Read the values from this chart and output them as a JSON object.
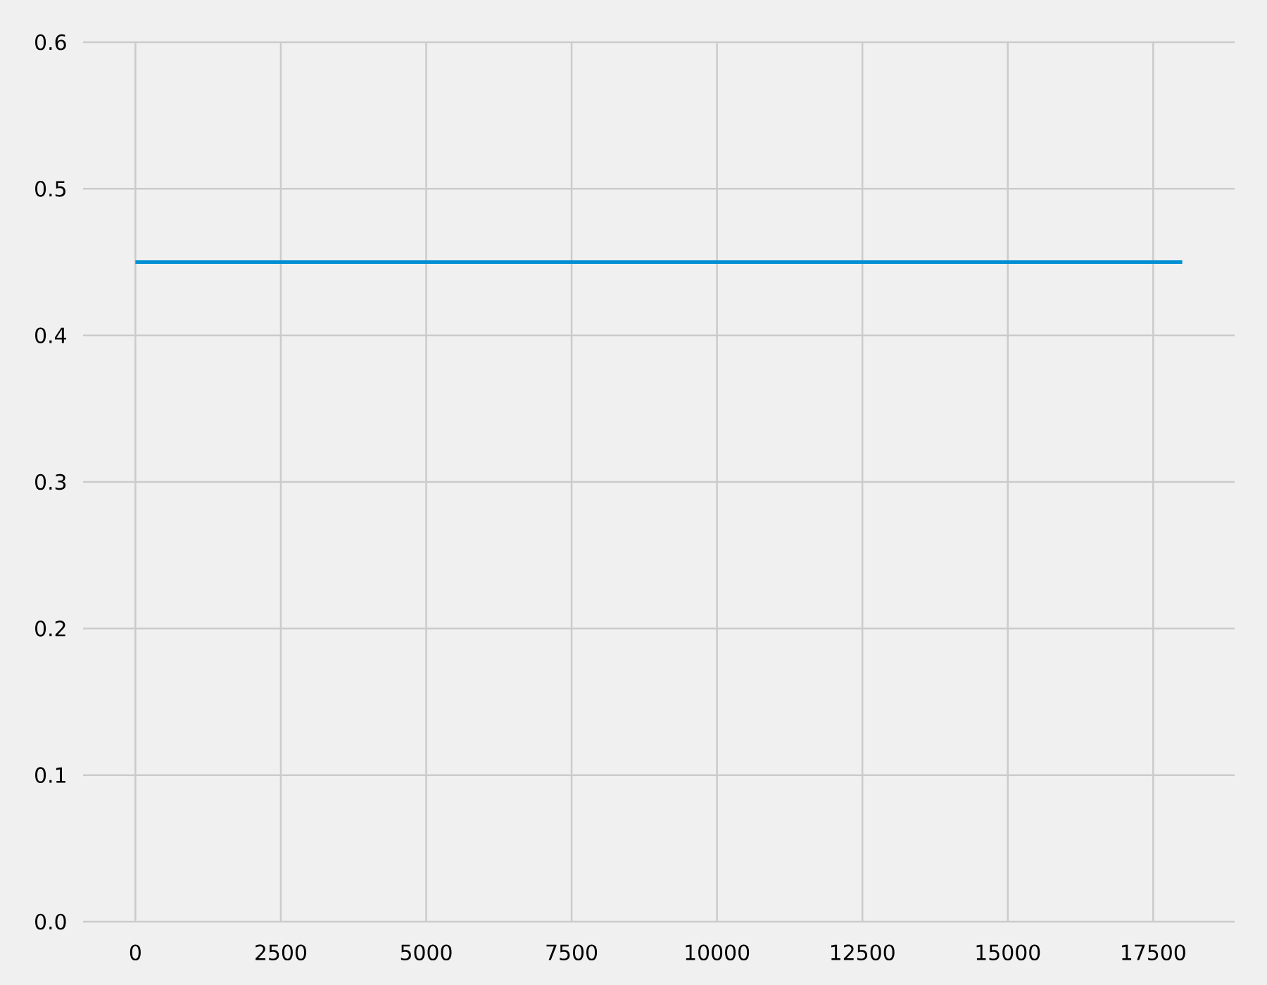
{
  "chart_data": {
    "type": "line",
    "x": [
      0,
      18000
    ],
    "series": [
      {
        "color": "#008fd5",
        "values": [
          0.45,
          0.45
        ]
      }
    ],
    "xlim": [
      -900,
      18900
    ],
    "ylim": [
      0,
      0.6
    ],
    "xticks": [
      0,
      2500,
      5000,
      7500,
      10000,
      12500,
      15000,
      17500
    ],
    "yticks": [
      {
        "value": 0,
        "label": "0.0"
      },
      0.1,
      0.2,
      0.3,
      0.4,
      0.5,
      0.6
    ],
    "grid": true,
    "marker": "none",
    "line_style": "solid"
  }
}
